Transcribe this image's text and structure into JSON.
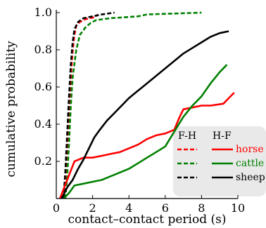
{
  "chart_data": {
    "type": "line",
    "title": "",
    "xlabel": "contact–contact period (s)",
    "ylabel": "cumulative probability",
    "xlim": [
      0,
      10
    ],
    "ylim": [
      0,
      1.0
    ],
    "xticks": [
      {
        "value": 0,
        "label": "0"
      },
      {
        "value": 2,
        "label": "2"
      },
      {
        "value": 4,
        "label": "4"
      },
      {
        "value": 6,
        "label": "6"
      },
      {
        "value": 8,
        "label": "8"
      },
      {
        "value": 10,
        "label": "10"
      }
    ],
    "yticks": [
      {
        "value": 0.2,
        "label": "0.2"
      },
      {
        "value": 0.4,
        "label": "0.4"
      },
      {
        "value": 0.6,
        "label": "0.6"
      },
      {
        "value": 0.8,
        "label": "0.8"
      },
      {
        "value": 1.0,
        "label": "1.0"
      }
    ],
    "grid": false,
    "legend": {
      "position": "bottom-right",
      "column_headers": [
        "F-H",
        "H-F"
      ],
      "rows": [
        "horse",
        "cattle",
        "sheep"
      ]
    },
    "colors": {
      "horse": "#ff0000",
      "cattle": "#008000",
      "sheep": "#000000"
    },
    "series": [
      {
        "name": "horse",
        "group": "F-H",
        "dash": "dashed",
        "color": "#ff0000",
        "points": [
          [
            0.4,
            0.0
          ],
          [
            0.5,
            0.12
          ],
          [
            0.6,
            0.28
          ],
          [
            0.7,
            0.48
          ],
          [
            0.8,
            0.65
          ],
          [
            0.9,
            0.79
          ],
          [
            1.0,
            0.88
          ],
          [
            1.1,
            0.93
          ],
          [
            1.3,
            0.95
          ],
          [
            1.6,
            0.965
          ],
          [
            2.1,
            0.975
          ],
          [
            2.3,
            0.99
          ]
        ]
      },
      {
        "name": "cattle",
        "group": "F-H",
        "dash": "dashed",
        "color": "#008000",
        "points": [
          [
            0.5,
            0.0
          ],
          [
            0.6,
            0.12
          ],
          [
            0.7,
            0.3
          ],
          [
            0.8,
            0.5
          ],
          [
            0.9,
            0.65
          ],
          [
            1.1,
            0.8
          ],
          [
            1.3,
            0.88
          ],
          [
            1.6,
            0.92
          ],
          [
            1.9,
            0.945
          ],
          [
            2.2,
            0.96
          ],
          [
            3.0,
            0.97
          ],
          [
            3.8,
            0.975
          ],
          [
            4.5,
            0.98
          ],
          [
            5.0,
            0.99
          ],
          [
            6.5,
            0.995
          ],
          [
            8.0,
            1.0
          ]
        ]
      },
      {
        "name": "sheep",
        "group": "F-H",
        "dash": "dashed",
        "color": "#000000",
        "points": [
          [
            0.4,
            0.0
          ],
          [
            0.5,
            0.15
          ],
          [
            0.6,
            0.35
          ],
          [
            0.7,
            0.55
          ],
          [
            0.8,
            0.72
          ],
          [
            0.9,
            0.84
          ],
          [
            1.0,
            0.91
          ],
          [
            1.2,
            0.95
          ],
          [
            1.5,
            0.97
          ],
          [
            2.0,
            0.98
          ],
          [
            2.5,
            0.99
          ],
          [
            3.2,
            1.0
          ]
        ]
      },
      {
        "name": "horse",
        "group": "H-F",
        "dash": "solid",
        "color": "#ff0000",
        "points": [
          [
            0.2,
            0.0
          ],
          [
            0.4,
            0.05
          ],
          [
            0.6,
            0.1
          ],
          [
            0.8,
            0.15
          ],
          [
            1.0,
            0.2
          ],
          [
            1.5,
            0.22
          ],
          [
            2.0,
            0.22
          ],
          [
            2.5,
            0.23
          ],
          [
            3.0,
            0.24
          ],
          [
            3.5,
            0.25
          ],
          [
            4.0,
            0.27
          ],
          [
            4.5,
            0.29
          ],
          [
            5.0,
            0.32
          ],
          [
            5.5,
            0.34
          ],
          [
            6.0,
            0.35
          ],
          [
            6.5,
            0.37
          ],
          [
            6.8,
            0.44
          ],
          [
            7.0,
            0.48
          ],
          [
            7.5,
            0.49
          ],
          [
            8.0,
            0.5
          ],
          [
            8.5,
            0.5
          ],
          [
            9.2,
            0.51
          ],
          [
            9.5,
            0.54
          ],
          [
            9.8,
            0.57
          ]
        ]
      },
      {
        "name": "cattle",
        "group": "H-F",
        "dash": "solid",
        "color": "#008000",
        "points": [
          [
            0.4,
            0.0
          ],
          [
            0.7,
            0.03
          ],
          [
            1.0,
            0.07
          ],
          [
            1.5,
            0.08
          ],
          [
            2.0,
            0.09
          ],
          [
            2.5,
            0.1
          ],
          [
            3.0,
            0.12
          ],
          [
            3.5,
            0.14
          ],
          [
            4.0,
            0.16
          ],
          [
            4.5,
            0.19
          ],
          [
            5.0,
            0.22
          ],
          [
            5.5,
            0.25
          ],
          [
            6.0,
            0.28
          ],
          [
            6.5,
            0.36
          ],
          [
            7.0,
            0.44
          ],
          [
            7.5,
            0.5
          ],
          [
            8.0,
            0.55
          ],
          [
            8.5,
            0.62
          ],
          [
            9.0,
            0.68
          ],
          [
            9.4,
            0.72
          ]
        ]
      },
      {
        "name": "sheep",
        "group": "H-F",
        "dash": "solid",
        "color": "#000000",
        "points": [
          [
            0.3,
            0.0
          ],
          [
            0.6,
            0.06
          ],
          [
            0.9,
            0.1
          ],
          [
            1.2,
            0.16
          ],
          [
            1.5,
            0.21
          ],
          [
            1.8,
            0.27
          ],
          [
            2.1,
            0.33
          ],
          [
            2.4,
            0.37
          ],
          [
            2.8,
            0.42
          ],
          [
            3.2,
            0.46
          ],
          [
            3.6,
            0.5
          ],
          [
            4.0,
            0.54
          ],
          [
            4.5,
            0.58
          ],
          [
            5.0,
            0.62
          ],
          [
            5.5,
            0.66
          ],
          [
            6.0,
            0.7
          ],
          [
            6.5,
            0.74
          ],
          [
            7.0,
            0.78
          ],
          [
            7.5,
            0.81
          ],
          [
            8.0,
            0.84
          ],
          [
            8.5,
            0.87
          ],
          [
            9.0,
            0.89
          ],
          [
            9.5,
            0.9
          ]
        ]
      }
    ]
  }
}
